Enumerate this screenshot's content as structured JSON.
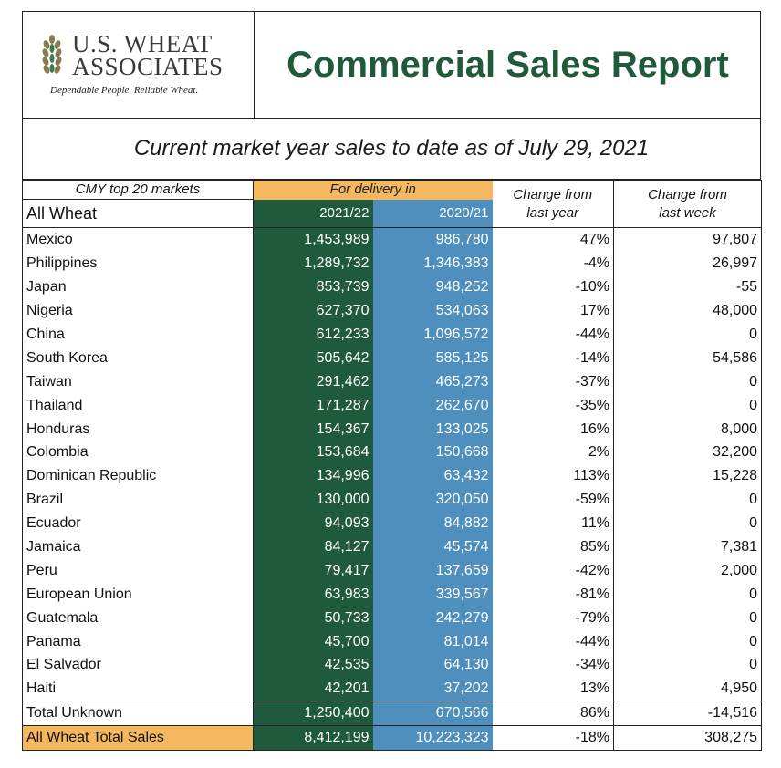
{
  "logo": {
    "line1": "U.S. WHEAT",
    "line2": "ASSOCIATES",
    "tagline": "Dependable People. Reliable Wheat."
  },
  "title": "Commercial Sales Report",
  "subtitle": "Current market year sales to date as of July 29, 2021",
  "colors": {
    "green_title": "#205a3b",
    "current_year_fill": "#1f5a3c",
    "prior_year_fill": "#4e8fbd",
    "highlight": "#f4b860"
  },
  "chart_data": {
    "type": "table",
    "header": {
      "top_markets_label": "CMY top 20 markets",
      "all_wheat_label": "All Wheat",
      "delivery_label": "For delivery in",
      "year_current": "2021/22",
      "year_prior": "2020/21",
      "change_year_line1": "Change from",
      "change_year_line2": "last year",
      "change_week_line1": "Change from",
      "change_week_line2": "last week"
    },
    "rows": [
      {
        "country": "Mexico",
        "current": "1,453,989",
        "prior": "986,780",
        "change_year": "47%",
        "change_week": "97,807"
      },
      {
        "country": "Philippines",
        "current": "1,289,732",
        "prior": "1,346,383",
        "change_year": "-4%",
        "change_week": "26,997"
      },
      {
        "country": "Japan",
        "current": "853,739",
        "prior": "948,252",
        "change_year": "-10%",
        "change_week": "-55"
      },
      {
        "country": "Nigeria",
        "current": "627,370",
        "prior": "534,063",
        "change_year": "17%",
        "change_week": "48,000"
      },
      {
        "country": "China",
        "current": "612,233",
        "prior": "1,096,572",
        "change_year": "-44%",
        "change_week": "0"
      },
      {
        "country": "South Korea",
        "current": "505,642",
        "prior": "585,125",
        "change_year": "-14%",
        "change_week": "54,586"
      },
      {
        "country": "Taiwan",
        "current": "291,462",
        "prior": "465,273",
        "change_year": "-37%",
        "change_week": "0"
      },
      {
        "country": "Thailand",
        "current": "171,287",
        "prior": "262,670",
        "change_year": "-35%",
        "change_week": "0"
      },
      {
        "country": "Honduras",
        "current": "154,367",
        "prior": "133,025",
        "change_year": "16%",
        "change_week": "8,000"
      },
      {
        "country": "Colombia",
        "current": "153,684",
        "prior": "150,668",
        "change_year": "2%",
        "change_week": "32,200"
      },
      {
        "country": "Dominican Republic",
        "current": "134,996",
        "prior": "63,432",
        "change_year": "113%",
        "change_week": "15,228"
      },
      {
        "country": "Brazil",
        "current": "130,000",
        "prior": "320,050",
        "change_year": "-59%",
        "change_week": "0"
      },
      {
        "country": "Ecuador",
        "current": "94,093",
        "prior": "84,882",
        "change_year": "11%",
        "change_week": "0"
      },
      {
        "country": "Jamaica",
        "current": "84,127",
        "prior": "45,574",
        "change_year": "85%",
        "change_week": "7,381"
      },
      {
        "country": "Peru",
        "current": "79,417",
        "prior": "137,659",
        "change_year": "-42%",
        "change_week": "2,000"
      },
      {
        "country": "European Union",
        "current": "63,983",
        "prior": "339,567",
        "change_year": "-81%",
        "change_week": "0"
      },
      {
        "country": "Guatemala",
        "current": "50,733",
        "prior": "242,279",
        "change_year": "-79%",
        "change_week": "0"
      },
      {
        "country": "Panama",
        "current": "45,700",
        "prior": "81,014",
        "change_year": "-44%",
        "change_week": "0"
      },
      {
        "country": "El Salvador",
        "current": "42,535",
        "prior": "64,130",
        "change_year": "-34%",
        "change_week": "0"
      },
      {
        "country": "Haiti",
        "current": "42,201",
        "prior": "37,202",
        "change_year": "13%",
        "change_week": "4,950"
      }
    ],
    "total_unknown": {
      "country": "Total Unknown",
      "current": "1,250,400",
      "prior": "670,566",
      "change_year": "86%",
      "change_week": "-14,516"
    },
    "grand_total": {
      "country": "All Wheat Total Sales",
      "current": "8,412,199",
      "prior": "10,223,323",
      "change_year": "-18%",
      "change_week": "308,275"
    }
  }
}
